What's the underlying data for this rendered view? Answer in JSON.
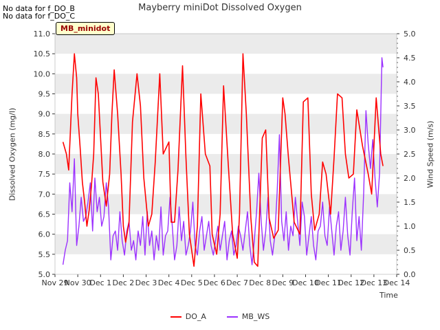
{
  "notes": [
    "No data for f_DO_B",
    "No data for f_DO_C"
  ],
  "station_label": "MB_minidot",
  "colors": {
    "do_a": "#ff0000",
    "mb_ws": "#9b30ff",
    "band": "#ebebeb",
    "grid": "#ffffff"
  },
  "chart_data": {
    "type": "line",
    "title": "Mayberry miniDot Dissolved Oxygen",
    "xlabel": "Time",
    "ylabel": "Dissolved Oxygen (mg/l)",
    "y2label": "Wind Speed (m/s)",
    "xlim": [
      0,
      15
    ],
    "ylim": [
      5.0,
      11.0
    ],
    "y2lim": [
      0.0,
      5.0
    ],
    "x_ticks": [
      "Nov 29",
      "Nov 30",
      "Dec 1",
      "Dec 2",
      "Dec 3",
      "Dec 4",
      "Dec 5",
      "Dec 6",
      "Dec 7",
      "Dec 8",
      "Dec 9",
      "Dec 10",
      "Dec 11",
      "Dec 12",
      "Dec 13",
      "Dec 14"
    ],
    "y_ticks": [
      "5.0",
      "5.5",
      "6.0",
      "6.5",
      "7.0",
      "7.5",
      "8.0",
      "8.5",
      "9.0",
      "9.5",
      "10.0",
      "10.5",
      "11.0"
    ],
    "y2_ticks": [
      "0.0",
      "0.5",
      "1.0",
      "1.5",
      "2.0",
      "2.5",
      "3.0",
      "3.5",
      "4.0",
      "4.5",
      "5.0"
    ],
    "legend": "bottom-center",
    "series": [
      {
        "name": "DO_A",
        "axis": "left",
        "x": [
          0.35,
          0.5,
          0.6,
          0.75,
          0.85,
          0.95,
          1.0,
          1.1,
          1.2,
          1.3,
          1.4,
          1.5,
          1.6,
          1.7,
          1.8,
          1.9,
          2.0,
          2.1,
          2.25,
          2.4,
          2.5,
          2.6,
          2.75,
          2.9,
          3.0,
          3.1,
          3.25,
          3.4,
          3.6,
          3.75,
          3.9,
          4.1,
          4.25,
          4.4,
          4.6,
          4.75,
          5.0,
          5.1,
          5.25,
          5.4,
          5.6,
          5.75,
          5.9,
          6.1,
          6.25,
          6.4,
          6.6,
          6.8,
          6.9,
          7.1,
          7.25,
          7.4,
          7.6,
          7.8,
          8.0,
          8.1,
          8.25,
          8.4,
          8.6,
          8.75,
          8.9,
          9.1,
          9.25,
          9.4,
          9.6,
          9.8,
          10.0,
          10.1,
          10.25,
          10.5,
          10.75,
          10.9,
          11.1,
          11.25,
          11.4,
          11.6,
          11.75,
          11.9,
          12.1,
          12.25,
          12.4,
          12.6,
          12.75,
          12.9,
          13.1,
          13.25,
          13.5,
          13.75,
          13.9,
          14.1,
          14.3,
          14.4
        ],
        "values": [
          8.3,
          8.0,
          7.6,
          9.5,
          10.5,
          9.9,
          9.0,
          8.2,
          7.3,
          6.8,
          6.2,
          6.6,
          7.2,
          8.0,
          9.9,
          9.5,
          8.4,
          7.3,
          6.7,
          7.5,
          9.0,
          10.1,
          9.0,
          7.5,
          6.2,
          5.8,
          6.3,
          8.8,
          10.0,
          9.2,
          7.4,
          6.2,
          6.5,
          7.8,
          10.0,
          8.0,
          8.3,
          6.3,
          6.3,
          7.6,
          10.2,
          7.9,
          6.0,
          5.2,
          6.2,
          9.5,
          8.0,
          7.7,
          6.0,
          5.5,
          6.5,
          9.7,
          7.8,
          6.0,
          5.4,
          6.5,
          10.5,
          9.0,
          6.4,
          5.3,
          5.2,
          8.4,
          8.6,
          6.4,
          5.9,
          6.1,
          9.4,
          9.0,
          7.9,
          6.3,
          6.0,
          9.3,
          9.4,
          7.0,
          6.1,
          6.5,
          7.8,
          7.5,
          6.5,
          7.9,
          9.5,
          9.4,
          8.0,
          7.4,
          7.5,
          9.1,
          8.2,
          7.5,
          7.0,
          9.4,
          8.0,
          7.7
        ]
      },
      {
        "name": "MB_WS",
        "axis": "right",
        "x": [
          0.35,
          0.45,
          0.55,
          0.65,
          0.75,
          0.85,
          0.95,
          1.05,
          1.15,
          1.25,
          1.35,
          1.45,
          1.55,
          1.65,
          1.75,
          1.85,
          1.95,
          2.05,
          2.15,
          2.25,
          2.35,
          2.45,
          2.55,
          2.65,
          2.75,
          2.85,
          2.95,
          3.05,
          3.15,
          3.25,
          3.35,
          3.45,
          3.55,
          3.65,
          3.75,
          3.85,
          3.95,
          4.05,
          4.15,
          4.25,
          4.35,
          4.45,
          4.55,
          4.65,
          4.75,
          4.85,
          4.95,
          5.05,
          5.15,
          5.25,
          5.35,
          5.45,
          5.55,
          5.65,
          5.75,
          5.85,
          5.95,
          6.05,
          6.15,
          6.25,
          6.35,
          6.45,
          6.55,
          6.65,
          6.75,
          6.85,
          6.95,
          7.05,
          7.15,
          7.25,
          7.35,
          7.45,
          7.55,
          7.65,
          7.75,
          7.85,
          7.95,
          8.05,
          8.15,
          8.25,
          8.35,
          8.45,
          8.55,
          8.65,
          8.75,
          8.85,
          8.95,
          9.05,
          9.15,
          9.25,
          9.35,
          9.45,
          9.55,
          9.65,
          9.75,
          9.85,
          9.95,
          10.05,
          10.15,
          10.25,
          10.35,
          10.45,
          10.55,
          10.65,
          10.75,
          10.85,
          10.95,
          11.05,
          11.15,
          11.25,
          11.35,
          11.45,
          11.55,
          11.65,
          11.75,
          11.85,
          11.95,
          12.05,
          12.15,
          12.25,
          12.35,
          12.45,
          12.55,
          12.65,
          12.75,
          12.85,
          12.95,
          13.05,
          13.15,
          13.25,
          13.35,
          13.45,
          13.55,
          13.65,
          13.75,
          13.85,
          13.95,
          14.05,
          14.15,
          14.25,
          14.35,
          14.4
        ],
        "values": [
          0.2,
          0.5,
          0.7,
          1.9,
          1.3,
          2.4,
          0.6,
          1.0,
          1.6,
          1.1,
          1.2,
          1.5,
          1.9,
          0.9,
          2.0,
          1.3,
          1.6,
          1.0,
          1.2,
          1.9,
          1.4,
          0.3,
          0.8,
          0.9,
          0.5,
          1.3,
          0.7,
          0.4,
          0.9,
          1.1,
          0.5,
          0.7,
          0.3,
          0.9,
          0.6,
          1.2,
          0.4,
          1.3,
          0.6,
          0.9,
          0.3,
          0.8,
          0.5,
          1.4,
          0.4,
          0.8,
          0.9,
          1.6,
          1.0,
          0.3,
          0.6,
          1.4,
          0.7,
          1.1,
          0.4,
          0.6,
          0.9,
          1.5,
          0.6,
          0.4,
          0.9,
          1.2,
          0.5,
          0.8,
          1.1,
          0.6,
          0.4,
          0.7,
          1.0,
          0.5,
          0.8,
          1.1,
          0.3,
          0.7,
          0.9,
          0.4,
          0.6,
          1.0,
          0.8,
          0.5,
          0.9,
          1.3,
          0.6,
          0.2,
          0.7,
          1.3,
          2.1,
          1.1,
          0.5,
          0.9,
          1.6,
          0.7,
          0.4,
          0.8,
          1.7,
          2.9,
          1.1,
          0.7,
          1.3,
          0.5,
          1.0,
          0.8,
          1.6,
          1.1,
          0.6,
          1.5,
          1.2,
          0.4,
          0.8,
          1.2,
          0.6,
          0.3,
          0.9,
          1.0,
          1.5,
          0.8,
          0.6,
          1.4,
          0.9,
          0.4,
          1.0,
          1.3,
          0.5,
          0.9,
          1.6,
          0.8,
          0.4,
          1.3,
          2.0,
          0.7,
          1.2,
          0.5,
          1.7,
          3.4,
          2.7,
          2.2,
          2.8,
          2.0,
          1.4,
          2.1,
          4.5,
          4.3
        ]
      }
    ]
  }
}
